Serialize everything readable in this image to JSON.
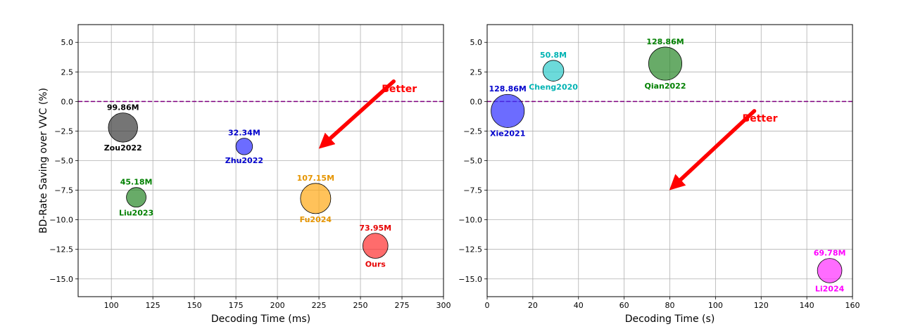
{
  "chart_data": [
    {
      "type": "scatter",
      "title": "",
      "xlabel": "Decoding Time (ms)",
      "ylabel": "BD-Rate Saving over VVC (%)",
      "xlim": [
        80,
        300
      ],
      "ylim": [
        6.5,
        -16.5
      ],
      "y_inverted": true,
      "xticks": [
        100,
        125,
        150,
        175,
        200,
        225,
        250,
        275,
        300
      ],
      "yticks": [
        5.0,
        2.5,
        0.0,
        -2.5,
        -5.0,
        -7.5,
        -10.0,
        -12.5,
        -15.0
      ],
      "ytick_labels": [
        "5.0",
        "2.5",
        "0.0",
        "−2.5",
        "−5.0",
        "−7.5",
        "−10.0",
        "−12.5",
        "−15.0"
      ],
      "grid": true,
      "baseline": {
        "y": 0.0,
        "color": "#800080",
        "style": "dashed"
      },
      "annotation": {
        "text": "Better",
        "from": [
          270,
          1.7
        ],
        "to": [
          228,
          -3.6
        ],
        "color": "#ff0000"
      },
      "points": [
        {
          "name": "Zou2022",
          "x": 107,
          "y": -2.2,
          "params": "99.86M",
          "params_value": 99.86,
          "color": "#404040",
          "label_color": "#000000"
        },
        {
          "name": "Liu2023",
          "x": 115,
          "y": -8.1,
          "params": "45.18M",
          "params_value": 45.18,
          "color": "#2e8b2e",
          "label_color": "#008000"
        },
        {
          "name": "Zhu2022",
          "x": 180,
          "y": -3.8,
          "params": "32.34M",
          "params_value": 32.34,
          "color": "#3333ff",
          "label_color": "#0000cc"
        },
        {
          "name": "Fu2024",
          "x": 223,
          "y": -8.2,
          "params": "107.15M",
          "params_value": 107.15,
          "color": "#ffaa1a",
          "label_color": "#e69500"
        },
        {
          "name": "Ours",
          "x": 259,
          "y": -12.2,
          "params": "73.95M",
          "params_value": 73.95,
          "color": "#ff3333",
          "label_color": "#e60000"
        }
      ]
    },
    {
      "type": "scatter",
      "title": "",
      "xlabel": "Decoding Time (s)",
      "ylabel": "",
      "xlim": [
        0,
        160
      ],
      "ylim": [
        6.5,
        -16.5
      ],
      "y_inverted": true,
      "xticks": [
        0,
        20,
        40,
        60,
        80,
        100,
        120,
        140,
        160
      ],
      "yticks": [
        5.0,
        2.5,
        0.0,
        -2.5,
        -5.0,
        -7.5,
        -10.0,
        -12.5,
        -15.0
      ],
      "ytick_labels": [
        "5.0",
        "2.5",
        "0.0",
        "−2.5",
        "−5.0",
        "−7.5",
        "−10.0",
        "−12.5",
        "−15.0"
      ],
      "grid": true,
      "baseline": {
        "y": 0.0,
        "color": "#800080",
        "style": "dashed"
      },
      "annotation": {
        "text": "Better",
        "from": [
          117,
          -0.8
        ],
        "to": [
          82,
          -7.1
        ],
        "color": "#ff0000"
      },
      "points": [
        {
          "name": "Xie2021",
          "x": 9,
          "y": -0.8,
          "params": "128.86M",
          "params_value": 128.86,
          "color": "#3333ff",
          "label_color": "#0000cc"
        },
        {
          "name": "Cheng2020",
          "x": 29,
          "y": 2.6,
          "params": "50.8M",
          "params_value": 50.8,
          "color": "#33cccc",
          "label_color": "#00b3b3"
        },
        {
          "name": "Qian2022",
          "x": 78,
          "y": 3.2,
          "params": "128.86M",
          "params_value": 128.86,
          "color": "#2e8b2e",
          "label_color": "#008000"
        },
        {
          "name": "Li2024",
          "x": 150,
          "y": -14.3,
          "params": "69.78M",
          "params_value": 69.78,
          "color": "#ff33ff",
          "label_color": "#ff00ff"
        }
      ]
    }
  ]
}
